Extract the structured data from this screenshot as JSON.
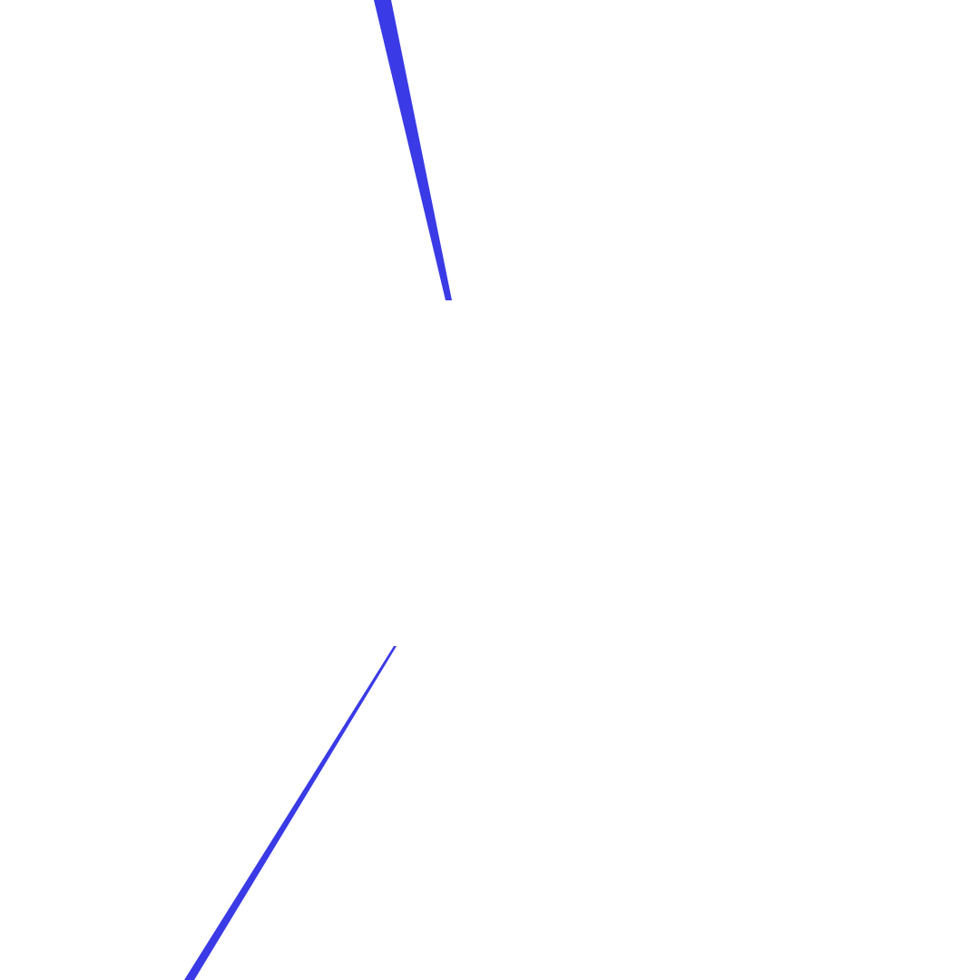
{
  "canvas": {
    "background": "#ffffff"
  },
  "shapes": {
    "color": "#3a3ae6",
    "items": [
      {
        "name": "upper-blue-sliver",
        "kind": "tapered-stroke"
      },
      {
        "name": "lower-blue-sliver",
        "kind": "tapered-stroke"
      }
    ]
  }
}
